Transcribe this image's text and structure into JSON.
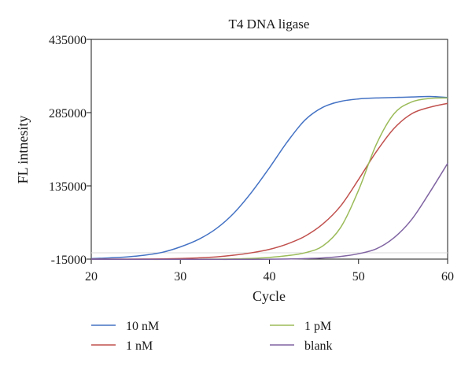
{
  "chart_data": {
    "type": "line",
    "title": "T4 DNA ligase",
    "xlabel": "Cycle",
    "ylabel": "FL intnesity",
    "xlim": [
      20,
      60
    ],
    "ylim": [
      -15000,
      435000
    ],
    "xticks": [
      "20",
      "30",
      "40",
      "50",
      "60"
    ],
    "yticks": [
      "-15000",
      "135000",
      "285000",
      "435000"
    ],
    "xtick_values": [
      20,
      30,
      40,
      50,
      60
    ],
    "ytick_values": [
      -15000,
      135000,
      285000,
      435000
    ],
    "grid": false,
    "legend_position": "bottom",
    "x": [
      20,
      22,
      24,
      26,
      28,
      30,
      32,
      34,
      36,
      38,
      40,
      42,
      44,
      46,
      48,
      50,
      52,
      54,
      56,
      58,
      60
    ],
    "series": [
      {
        "name": "10 nM",
        "color": "#4472c4",
        "values": [
          -14000,
          -12500,
          -10500,
          -7000,
          -1000,
          10000,
          25000,
          47000,
          79000,
          122000,
          172000,
          225000,
          270000,
          296000,
          308000,
          313000,
          315000,
          316000,
          317000,
          318000,
          316000
        ]
      },
      {
        "name": "1 nM",
        "color": "#c0504d",
        "values": [
          -15000,
          -15000,
          -15000,
          -14800,
          -14500,
          -13800,
          -12500,
          -10500,
          -7000,
          -2000,
          5000,
          16000,
          32000,
          57000,
          94000,
          148000,
          205000,
          253000,
          283000,
          296000,
          304000
        ]
      },
      {
        "name": "1 pM",
        "color": "#9bbb59",
        "values": [
          -15500,
          -15500,
          -15500,
          -15500,
          -15500,
          -15400,
          -15300,
          -15000,
          -14500,
          -13500,
          -11500,
          -8000,
          -2000,
          12000,
          50000,
          126000,
          220000,
          283000,
          307000,
          314000,
          315000
        ]
      },
      {
        "name": "blank",
        "color": "#8064a2",
        "values": [
          -15500,
          -15500,
          -15500,
          -15500,
          -15500,
          -15500,
          -15500,
          -15500,
          -15500,
          -15400,
          -15200,
          -14800,
          -14000,
          -12500,
          -9500,
          -4000,
          6000,
          29000,
          67000,
          122000,
          181000
        ]
      }
    ]
  }
}
